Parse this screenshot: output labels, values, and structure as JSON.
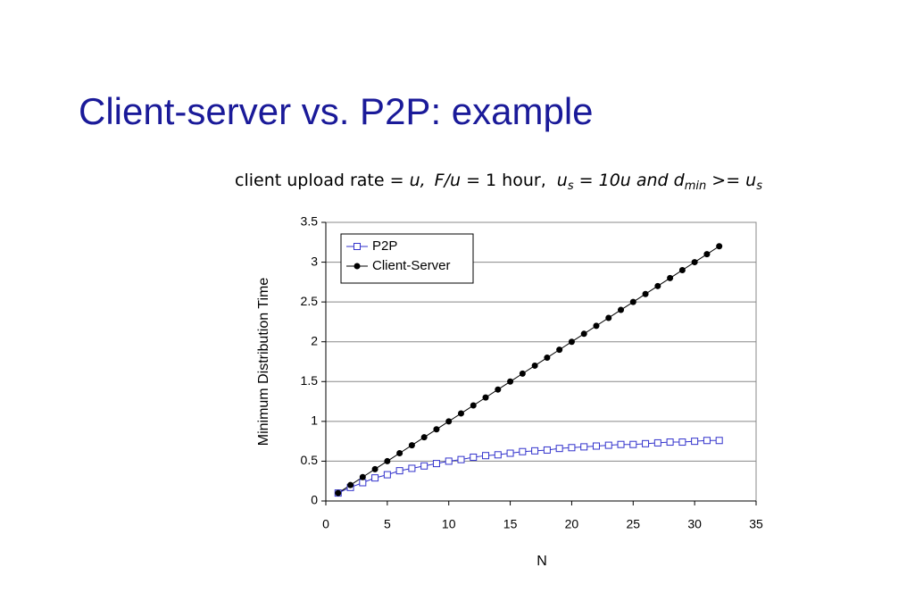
{
  "chart_data": {
    "type": "line",
    "title": "Client-server vs. P2P: example",
    "subtitle_parts": [
      "client upload rate = ",
      "u,",
      "F/u",
      " = 1 hour, ",
      "u",
      "s",
      " = 10u and d",
      "min",
      " >= u",
      "s"
    ],
    "x_label": "N",
    "y_label": "Minimum Distribution Time",
    "x": [
      1,
      2,
      3,
      4,
      5,
      6,
      7,
      8,
      9,
      10,
      11,
      12,
      13,
      14,
      15,
      16,
      17,
      18,
      19,
      20,
      21,
      22,
      23,
      24,
      25,
      26,
      27,
      28,
      29,
      30,
      31,
      32
    ],
    "series": [
      {
        "name": "P2P",
        "color": "#3333cc",
        "marker": "square",
        "values": [
          0.1,
          0.17,
          0.23,
          0.29,
          0.33,
          0.38,
          0.41,
          0.44,
          0.47,
          0.5,
          0.52,
          0.55,
          0.57,
          0.58,
          0.6,
          0.62,
          0.63,
          0.64,
          0.66,
          0.67,
          0.68,
          0.69,
          0.7,
          0.71,
          0.71,
          0.72,
          0.73,
          0.74,
          0.74,
          0.75,
          0.76,
          0.76
        ]
      },
      {
        "name": "Client-Server",
        "color": "#000000",
        "marker": "circle",
        "values": [
          0.1,
          0.2,
          0.3,
          0.4,
          0.5,
          0.6,
          0.7,
          0.8,
          0.9,
          1.0,
          1.1,
          1.2,
          1.3,
          1.4,
          1.5,
          1.6,
          1.7,
          1.8,
          1.9,
          2.0,
          2.1,
          2.2,
          2.3,
          2.4,
          2.5,
          2.6,
          2.7,
          2.8,
          2.9,
          3.0,
          3.1,
          3.2
        ]
      }
    ],
    "xlim": [
      0,
      35
    ],
    "xticks": [
      0,
      5,
      10,
      15,
      20,
      25,
      30,
      35
    ],
    "ylim": [
      0,
      3.5
    ],
    "yticks": [
      0,
      0.5,
      1,
      1.5,
      2,
      2.5,
      3,
      3.5
    ],
    "grid": true,
    "legend": "top-left"
  }
}
